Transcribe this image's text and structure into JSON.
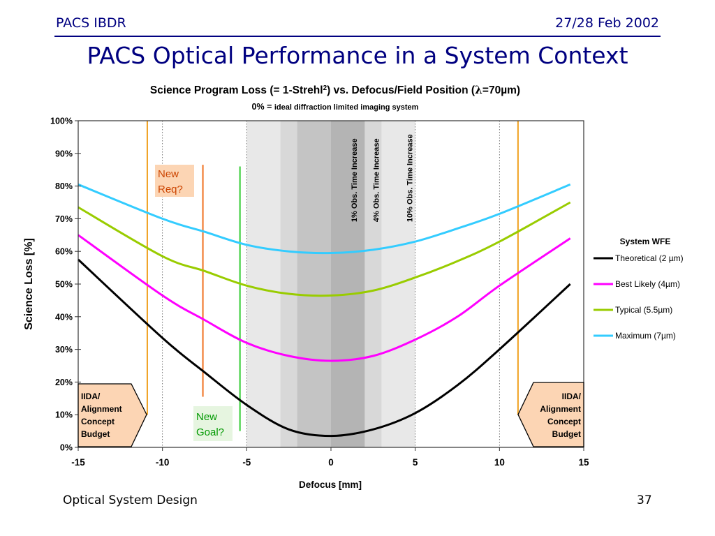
{
  "slide": {
    "header_left": "PACS IBDR",
    "header_right": "27/28 Feb 2002",
    "title": "PACS Optical Performance in a System Context",
    "footer_left": "Optical System Design",
    "page_number": "37",
    "colors": {
      "navy": "#000080"
    }
  },
  "chart_data": {
    "type": "line",
    "title_main": "Science Program Loss (= 1-Strehl",
    "title_sup": "2",
    "title_tail": ") vs. Defocus/Field Position (",
    "title_lambda": "λ",
    "title_end": "=70µm)",
    "subtitle_prefix": "0% = ",
    "subtitle_rest": "ideal diffraction limited imaging system",
    "xlabel": "Defocus [mm]",
    "ylabel": "Science Loss [%]",
    "xlim": [
      -15,
      15
    ],
    "ylim": [
      0,
      100
    ],
    "xticks": [
      "-15",
      "-10",
      "-5",
      "0",
      "5",
      "10",
      "15"
    ],
    "yticks": [
      "0%",
      "10%",
      "20%",
      "30%",
      "40%",
      "50%",
      "60%",
      "70%",
      "80%",
      "90%",
      "100%"
    ],
    "legend_title": "System WFE",
    "series": [
      {
        "name": "Theoretical (2 µm)",
        "color": "#000000",
        "x": [
          -15,
          -10,
          -7.5,
          -5,
          -2.5,
          0,
          2.5,
          5,
          7.5,
          10,
          14.2
        ],
        "y": [
          57.5,
          33.5,
          23.0,
          13.0,
          5.5,
          3.5,
          5.5,
          10.5,
          19.0,
          30.0,
          50.0
        ]
      },
      {
        "name": "Best Likely (4µm)",
        "color": "#ff00ff",
        "x": [
          -15,
          -10,
          -7.5,
          -5,
          -2.5,
          0,
          2.5,
          5,
          7.5,
          10,
          14.2
        ],
        "y": [
          65.0,
          46.5,
          39.0,
          32.0,
          28.0,
          26.5,
          28.0,
          33.0,
          40.0,
          49.5,
          64.0
        ]
      },
      {
        "name": "Typical (5.5µm)",
        "color": "#99cc00",
        "x": [
          -15,
          -10,
          -7.5,
          -5,
          -2.5,
          0,
          2.5,
          5,
          7.5,
          10,
          14.2
        ],
        "y": [
          73.5,
          58.5,
          54.0,
          49.5,
          47.0,
          46.5,
          48.0,
          52.0,
          57.0,
          63.0,
          75.0
        ]
      },
      {
        "name": "Maximum (7µm)",
        "color": "#33ccff",
        "x": [
          -15,
          -10,
          -7.5,
          -5,
          -2.5,
          0,
          2.5,
          5,
          7.5,
          10,
          14.2
        ],
        "y": [
          80.5,
          70.0,
          66.0,
          62.0,
          60.0,
          59.5,
          60.5,
          63.0,
          67.0,
          71.5,
          80.5
        ]
      }
    ],
    "shaded_bands": [
      {
        "x0": -5,
        "x1": 5,
        "color": "#e8e8e8"
      },
      {
        "x0": -3,
        "x1": 3,
        "color": "#d8d8d8"
      },
      {
        "x0": -2,
        "x1": 2,
        "color": "#c4c4c4"
      },
      {
        "x0": 0,
        "x1": 2,
        "color": "#b4b4b4"
      }
    ],
    "band_labels": [
      {
        "text": "1% Obs. Time Increase",
        "x": 1.7
      },
      {
        "text": "4% Obs. Time Increase",
        "x": 3.0
      },
      {
        "text": "10% Obs. Time Increase",
        "x": 5.0
      }
    ],
    "vertical_lines": [
      {
        "x": -10.9,
        "y0": 10,
        "y1": 100,
        "color": "#f0a020"
      },
      {
        "x": 11.1,
        "y0": 10,
        "y1": 100,
        "color": "#f0a020"
      },
      {
        "x": -7.6,
        "y0": 15.5,
        "y1": 86.5,
        "color": "#f07020"
      },
      {
        "x": -5.4,
        "y0": 5,
        "y1": 86,
        "color": "#33cc33"
      }
    ],
    "annotations": {
      "new_req": {
        "line1": "New",
        "line2": "Req?",
        "color": "#cc4400",
        "bg": "#fcd5b4"
      },
      "new_goal": {
        "line1": "New",
        "line2": "Goal?",
        "color": "#009900",
        "bg": "#e6f5e0"
      }
    },
    "budget_boxes": {
      "left": [
        "IIDA/",
        "Alignment",
        "Concept",
        "Budget"
      ],
      "right": [
        "IIDA/",
        "Alignment",
        "Concept",
        "Budget"
      ],
      "fill": "#fcd5b4"
    }
  }
}
